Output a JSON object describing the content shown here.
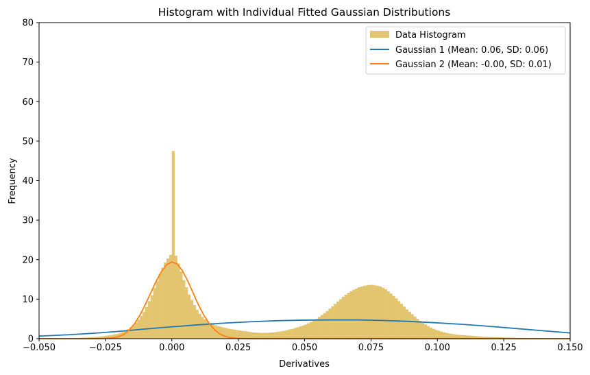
{
  "chart_data": {
    "type": "histogram",
    "title": "Histogram with Individual Fitted Gaussian Distributions",
    "xlabel": "Derivatives",
    "ylabel": "Frequency",
    "xlim": [
      -0.05,
      0.15
    ],
    "ylim": [
      0,
      80
    ],
    "x_ticks": [
      -0.05,
      -0.025,
      0.0,
      0.025,
      0.05,
      0.075,
      0.1,
      0.125,
      0.15
    ],
    "x_tick_labels": [
      "−0.050",
      "−0.025",
      "0.000",
      "0.025",
      "0.050",
      "0.075",
      "0.100",
      "0.125",
      "0.150"
    ],
    "y_ticks": [
      0,
      10,
      20,
      30,
      40,
      50,
      60,
      70,
      80
    ],
    "y_tick_labels": [
      "0",
      "10",
      "20",
      "30",
      "40",
      "50",
      "60",
      "70",
      "80"
    ],
    "grid": false,
    "legend_position": "upper right",
    "histogram": {
      "name": "Data Histogram",
      "color": "#e3c46f",
      "bin_width": 0.001,
      "bins": [
        [
          -0.05,
          0.05
        ],
        [
          -0.049,
          0.05
        ],
        [
          -0.048,
          0.05
        ],
        [
          -0.047,
          0.05
        ],
        [
          -0.046,
          0.05
        ],
        [
          -0.045,
          0.06
        ],
        [
          -0.044,
          0.06
        ],
        [
          -0.043,
          0.07
        ],
        [
          -0.042,
          0.07
        ],
        [
          -0.041,
          0.08
        ],
        [
          -0.04,
          0.1
        ],
        [
          -0.039,
          0.1
        ],
        [
          -0.038,
          0.12
        ],
        [
          -0.037,
          0.15
        ],
        [
          -0.036,
          0.17
        ],
        [
          -0.035,
          0.2
        ],
        [
          -0.034,
          0.23
        ],
        [
          -0.033,
          0.26
        ],
        [
          -0.032,
          0.3
        ],
        [
          -0.031,
          0.35
        ],
        [
          -0.03,
          0.4
        ],
        [
          -0.029,
          0.45
        ],
        [
          -0.028,
          0.5
        ],
        [
          -0.027,
          0.58
        ],
        [
          -0.026,
          0.66
        ],
        [
          -0.025,
          0.75
        ],
        [
          -0.024,
          0.85
        ],
        [
          -0.023,
          0.97
        ],
        [
          -0.022,
          1.1
        ],
        [
          -0.021,
          1.25
        ],
        [
          -0.02,
          1.45
        ],
        [
          -0.019,
          1.7
        ],
        [
          -0.018,
          2.0
        ],
        [
          -0.017,
          2.4
        ],
        [
          -0.016,
          2.9
        ],
        [
          -0.015,
          3.4
        ],
        [
          -0.014,
          4.0
        ],
        [
          -0.013,
          4.8
        ],
        [
          -0.012,
          5.7
        ],
        [
          -0.011,
          6.8
        ],
        [
          -0.01,
          8.0
        ],
        [
          -0.009,
          9.5
        ],
        [
          -0.008,
          11.0
        ],
        [
          -0.007,
          12.8
        ],
        [
          -0.006,
          14.5
        ],
        [
          -0.005,
          16.3
        ],
        [
          -0.004,
          18.0
        ],
        [
          -0.003,
          19.3
        ],
        [
          -0.002,
          20.3
        ],
        [
          -0.001,
          21.2
        ],
        [
          0.0,
          47.5
        ],
        [
          0.001,
          21.0
        ],
        [
          0.002,
          19.0
        ],
        [
          0.003,
          17.0
        ],
        [
          0.004,
          14.8
        ],
        [
          0.005,
          13.0
        ],
        [
          0.006,
          11.2
        ],
        [
          0.007,
          9.8
        ],
        [
          0.008,
          8.5
        ],
        [
          0.009,
          7.3
        ],
        [
          0.01,
          6.3
        ],
        [
          0.011,
          5.5
        ],
        [
          0.012,
          4.9
        ],
        [
          0.013,
          4.4
        ],
        [
          0.014,
          4.0
        ],
        [
          0.015,
          3.7
        ],
        [
          0.016,
          3.4
        ],
        [
          0.017,
          3.2
        ],
        [
          0.018,
          3.0
        ],
        [
          0.019,
          2.8
        ],
        [
          0.02,
          2.7
        ],
        [
          0.021,
          2.5
        ],
        [
          0.022,
          2.4
        ],
        [
          0.023,
          2.3
        ],
        [
          0.024,
          2.2
        ],
        [
          0.025,
          2.1
        ],
        [
          0.026,
          2.0
        ],
        [
          0.027,
          1.9
        ],
        [
          0.028,
          1.8
        ],
        [
          0.029,
          1.7
        ],
        [
          0.03,
          1.6
        ],
        [
          0.031,
          1.55
        ],
        [
          0.032,
          1.5
        ],
        [
          0.033,
          1.45
        ],
        [
          0.034,
          1.45
        ],
        [
          0.035,
          1.45
        ],
        [
          0.036,
          1.5
        ],
        [
          0.037,
          1.55
        ],
        [
          0.038,
          1.6
        ],
        [
          0.039,
          1.7
        ],
        [
          0.04,
          1.8
        ],
        [
          0.041,
          1.9
        ],
        [
          0.042,
          2.0
        ],
        [
          0.043,
          2.2
        ],
        [
          0.044,
          2.35
        ],
        [
          0.045,
          2.5
        ],
        [
          0.046,
          2.7
        ],
        [
          0.047,
          2.9
        ],
        [
          0.048,
          3.1
        ],
        [
          0.049,
          3.35
        ],
        [
          0.05,
          3.6
        ],
        [
          0.051,
          3.9
        ],
        [
          0.052,
          4.2
        ],
        [
          0.053,
          4.6
        ],
        [
          0.054,
          5.0
        ],
        [
          0.055,
          5.5
        ],
        [
          0.056,
          6.0
        ],
        [
          0.057,
          6.5
        ],
        [
          0.058,
          7.0
        ],
        [
          0.059,
          7.6
        ],
        [
          0.06,
          8.2
        ],
        [
          0.061,
          8.8
        ],
        [
          0.062,
          9.4
        ],
        [
          0.063,
          10.0
        ],
        [
          0.064,
          10.6
        ],
        [
          0.065,
          11.1
        ],
        [
          0.066,
          11.6
        ],
        [
          0.067,
          12.0
        ],
        [
          0.068,
          12.4
        ],
        [
          0.069,
          12.7
        ],
        [
          0.07,
          13.0
        ],
        [
          0.071,
          13.2
        ],
        [
          0.072,
          13.4
        ],
        [
          0.073,
          13.5
        ],
        [
          0.074,
          13.6
        ],
        [
          0.075,
          13.6
        ],
        [
          0.076,
          13.5
        ],
        [
          0.077,
          13.4
        ],
        [
          0.078,
          13.2
        ],
        [
          0.079,
          12.9
        ],
        [
          0.08,
          12.5
        ],
        [
          0.081,
          12.0
        ],
        [
          0.082,
          11.4
        ],
        [
          0.083,
          10.8
        ],
        [
          0.084,
          10.2
        ],
        [
          0.085,
          9.5
        ],
        [
          0.086,
          8.8
        ],
        [
          0.087,
          8.1
        ],
        [
          0.088,
          7.4
        ],
        [
          0.089,
          6.8
        ],
        [
          0.09,
          6.2
        ],
        [
          0.091,
          5.6
        ],
        [
          0.092,
          5.0
        ],
        [
          0.093,
          4.5
        ],
        [
          0.094,
          4.0
        ],
        [
          0.095,
          3.6
        ],
        [
          0.096,
          3.2
        ],
        [
          0.097,
          2.8
        ],
        [
          0.098,
          2.5
        ],
        [
          0.099,
          2.2
        ],
        [
          0.1,
          2.0
        ],
        [
          0.101,
          1.8
        ],
        [
          0.102,
          1.6
        ],
        [
          0.103,
          1.45
        ],
        [
          0.104,
          1.3
        ],
        [
          0.105,
          1.2
        ],
        [
          0.106,
          1.1
        ],
        [
          0.107,
          1.0
        ],
        [
          0.108,
          0.95
        ],
        [
          0.109,
          0.9
        ],
        [
          0.11,
          0.85
        ],
        [
          0.111,
          0.8
        ],
        [
          0.112,
          0.75
        ],
        [
          0.113,
          0.7
        ],
        [
          0.114,
          0.65
        ],
        [
          0.115,
          0.6
        ],
        [
          0.116,
          0.55
        ],
        [
          0.117,
          0.5
        ],
        [
          0.118,
          0.48
        ],
        [
          0.119,
          0.45
        ],
        [
          0.12,
          0.42
        ],
        [
          0.121,
          0.4
        ],
        [
          0.122,
          0.38
        ],
        [
          0.123,
          0.35
        ],
        [
          0.124,
          0.33
        ],
        [
          0.125,
          0.3
        ],
        [
          0.126,
          0.28
        ],
        [
          0.127,
          0.26
        ],
        [
          0.128,
          0.24
        ],
        [
          0.129,
          0.22
        ],
        [
          0.13,
          0.2
        ],
        [
          0.131,
          0.19
        ],
        [
          0.132,
          0.18
        ],
        [
          0.133,
          0.17
        ],
        [
          0.134,
          0.16
        ],
        [
          0.135,
          0.15
        ],
        [
          0.136,
          0.14
        ],
        [
          0.137,
          0.13
        ],
        [
          0.138,
          0.12
        ],
        [
          0.139,
          0.11
        ],
        [
          0.14,
          0.1
        ],
        [
          0.141,
          0.09
        ],
        [
          0.142,
          0.08
        ],
        [
          0.143,
          0.08
        ],
        [
          0.144,
          0.07
        ],
        [
          0.145,
          0.07
        ],
        [
          0.146,
          0.06
        ],
        [
          0.147,
          0.06
        ],
        [
          0.148,
          0.05
        ],
        [
          0.149,
          0.05
        ]
      ]
    },
    "series": [
      {
        "name": "Gaussian 1 (Mean: 0.06, SD: 0.06)",
        "type": "line",
        "color": "#1f77b4",
        "points": [
          [
            -0.05,
            0.65
          ],
          [
            -0.04,
            0.95
          ],
          [
            -0.03,
            1.35
          ],
          [
            -0.02,
            1.85
          ],
          [
            -0.01,
            2.45
          ],
          [
            0.0,
            3.0
          ],
          [
            0.01,
            3.5
          ],
          [
            0.02,
            3.95
          ],
          [
            0.03,
            4.3
          ],
          [
            0.04,
            4.55
          ],
          [
            0.05,
            4.7
          ],
          [
            0.06,
            4.75
          ],
          [
            0.07,
            4.75
          ],
          [
            0.08,
            4.6
          ],
          [
            0.09,
            4.35
          ],
          [
            0.1,
            4.0
          ],
          [
            0.11,
            3.6
          ],
          [
            0.12,
            3.1
          ],
          [
            0.13,
            2.55
          ],
          [
            0.14,
            2.0
          ],
          [
            0.15,
            1.45
          ]
        ]
      },
      {
        "name": "Gaussian 2 (Mean: -0.00, SD: 0.01)",
        "type": "line",
        "color": "#ff7f0e",
        "points": [
          [
            -0.05,
            0.0
          ],
          [
            -0.03,
            0.0
          ],
          [
            -0.025,
            0.05
          ],
          [
            -0.022,
            0.2
          ],
          [
            -0.02,
            0.5
          ],
          [
            -0.018,
            1.1
          ],
          [
            -0.016,
            2.2
          ],
          [
            -0.014,
            3.8
          ],
          [
            -0.012,
            6.0
          ],
          [
            -0.01,
            8.6
          ],
          [
            -0.008,
            11.5
          ],
          [
            -0.006,
            14.4
          ],
          [
            -0.004,
            16.9
          ],
          [
            -0.002,
            18.7
          ],
          [
            0.0,
            19.4
          ],
          [
            0.002,
            18.9
          ],
          [
            0.004,
            17.2
          ],
          [
            0.006,
            14.6
          ],
          [
            0.008,
            11.6
          ],
          [
            0.01,
            8.6
          ],
          [
            0.012,
            6.0
          ],
          [
            0.014,
            3.9
          ],
          [
            0.016,
            2.3
          ],
          [
            0.018,
            1.2
          ],
          [
            0.02,
            0.6
          ],
          [
            0.022,
            0.25
          ],
          [
            0.025,
            0.05
          ],
          [
            0.03,
            0.0
          ],
          [
            0.05,
            0.0
          ],
          [
            0.1,
            0.0
          ],
          [
            0.15,
            0.0
          ]
        ]
      }
    ]
  }
}
